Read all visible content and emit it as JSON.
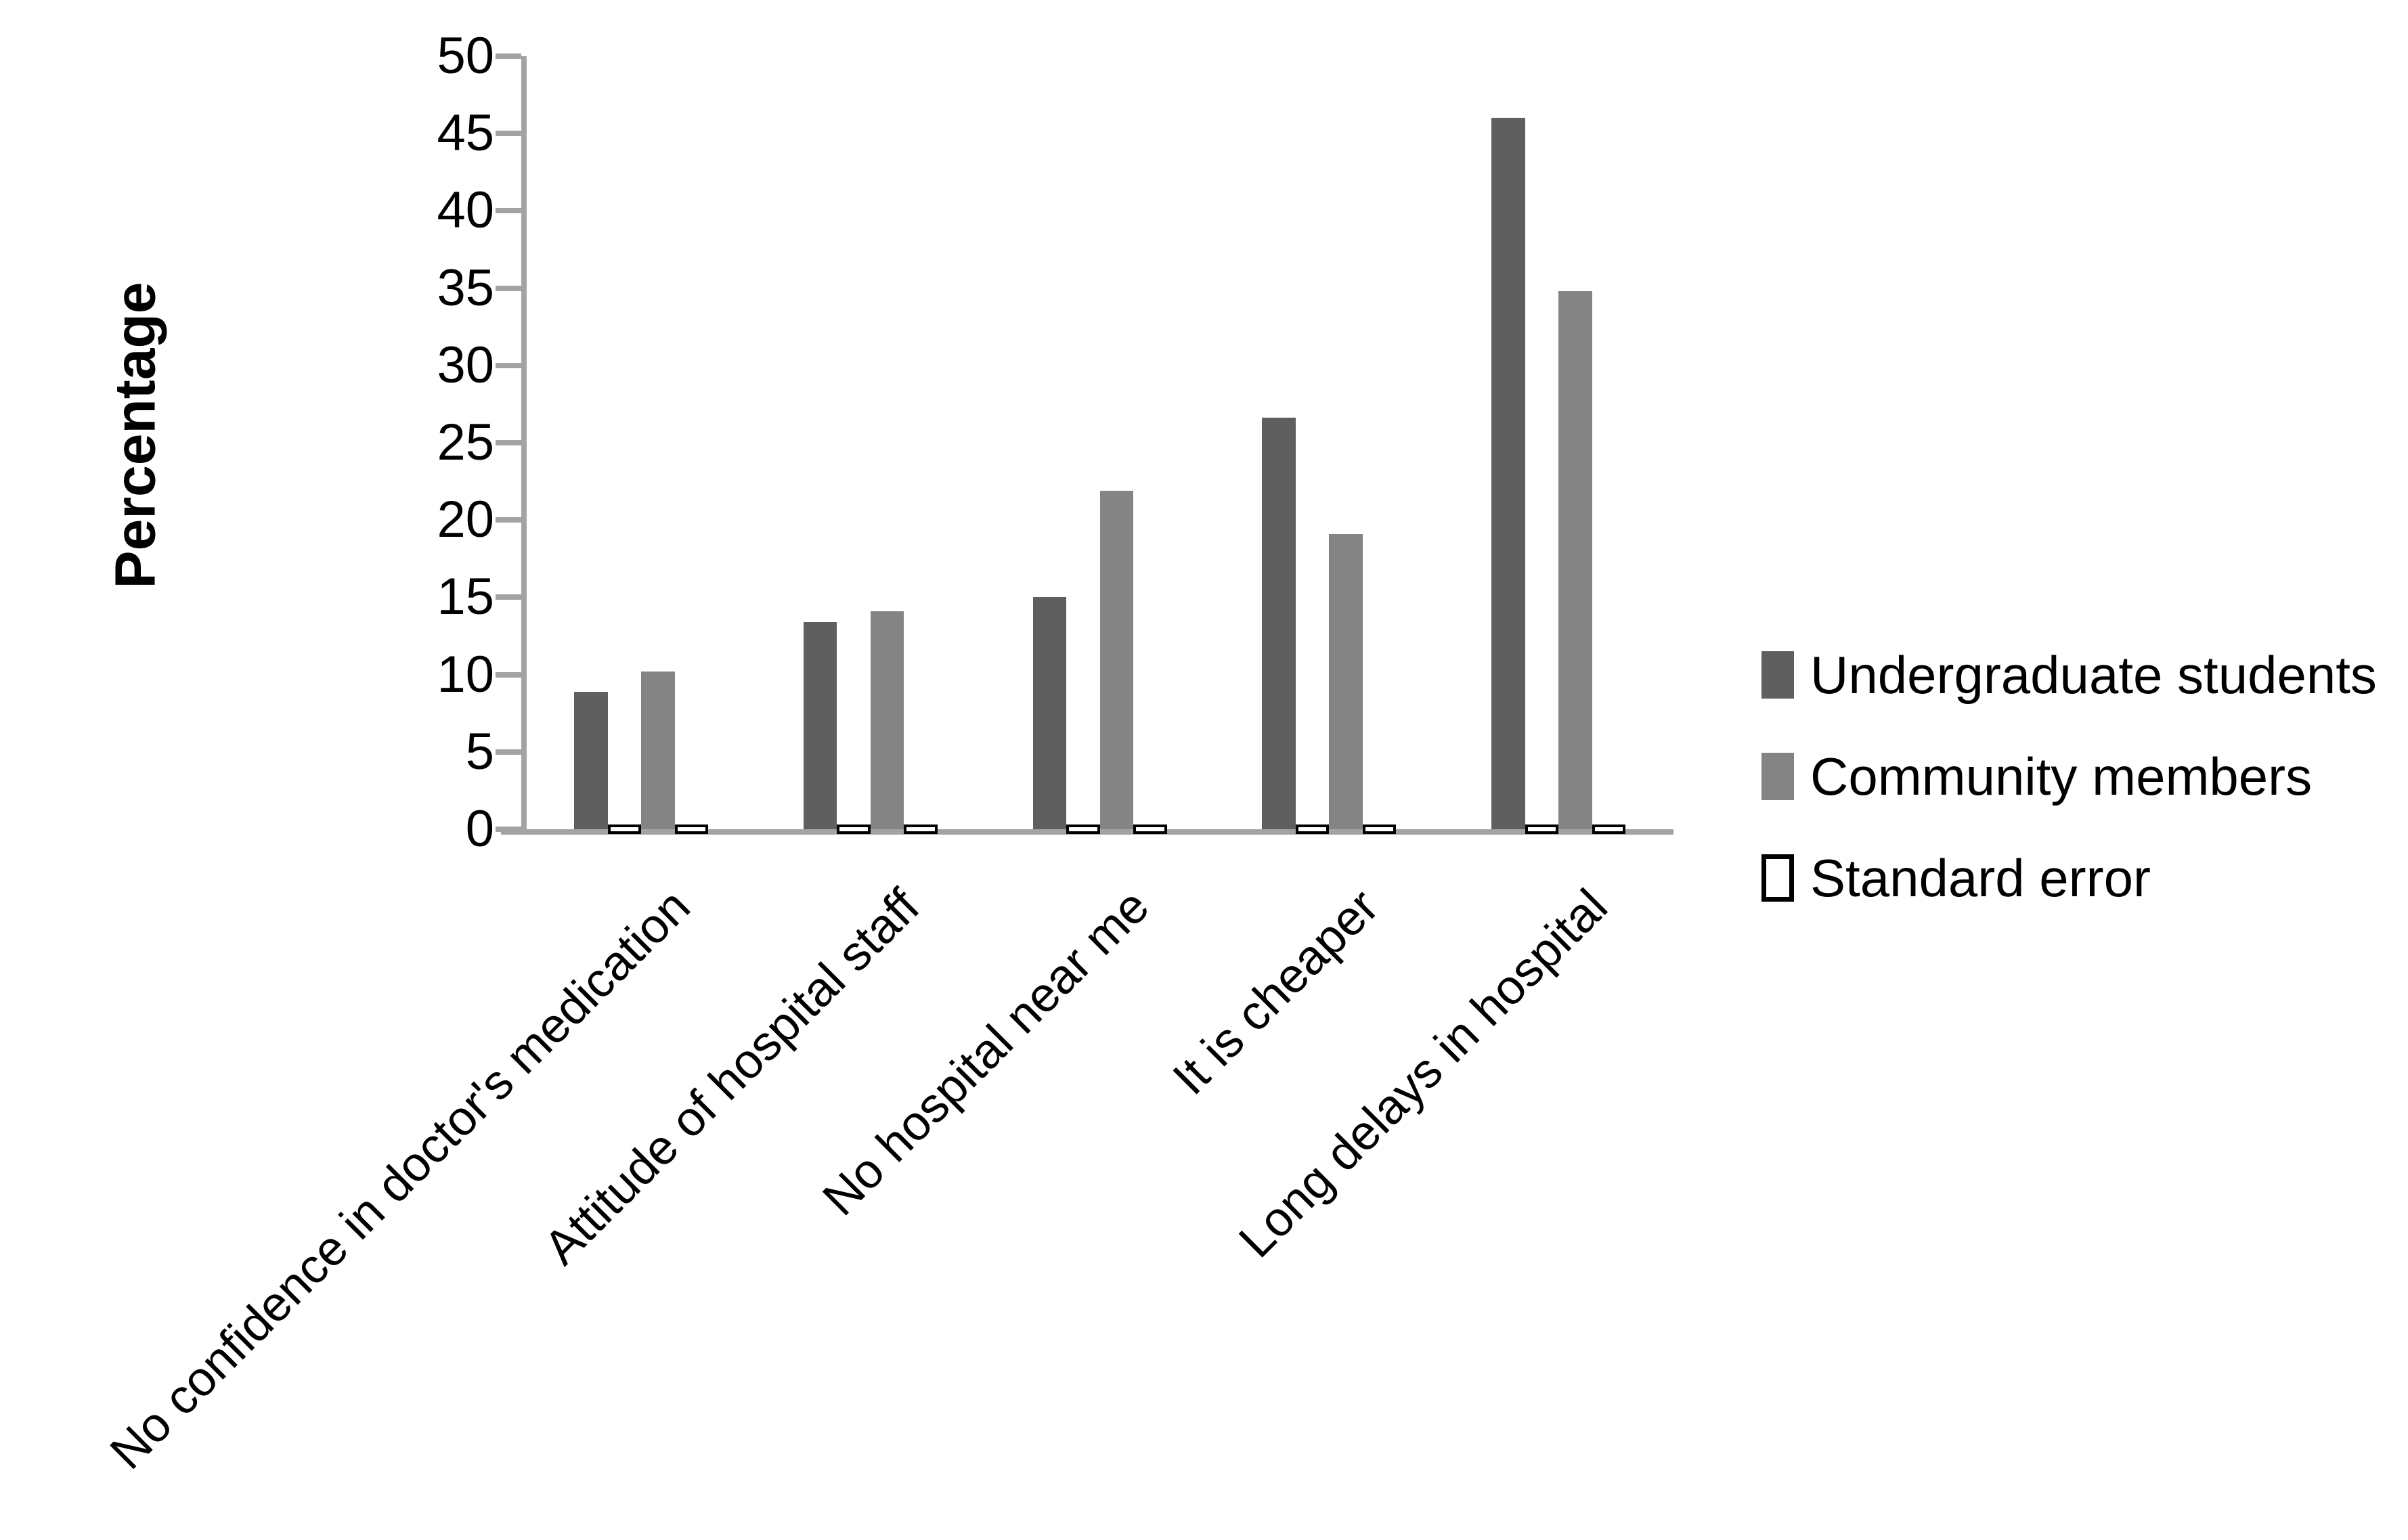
{
  "chart_data": {
    "type": "bar",
    "title": "",
    "ylabel": "Percentage",
    "ylim": [
      0,
      50
    ],
    "ytick_step": 5,
    "yticks": [
      0,
      5,
      10,
      15,
      20,
      25,
      30,
      35,
      40,
      45,
      50
    ],
    "categories": [
      "No confidence in doctor's medication",
      "Attitude of hospital staff",
      "No hospital near me",
      "It is cheaper",
      "Long delays in hospital"
    ],
    "series": [
      {
        "name": "Undergraduate students",
        "color": "#5f5f5f",
        "values": [
          8.9,
          13.4,
          15,
          26.6,
          46
        ]
      },
      {
        "name": "Community members",
        "color": "#848484",
        "values": [
          10.2,
          14.1,
          21.9,
          19.1,
          34.8
        ]
      },
      {
        "name": "Standard error",
        "color": "#ffffff",
        "border_color": "#000000",
        "values": [
          0.3,
          0.3,
          0.3,
          0.3,
          0.3
        ],
        "note": "drawn as a thin white black-outlined bar at the baseline beside each series bar"
      }
    ],
    "legend_position": "right",
    "grid": false,
    "axis_color": "#a3a3a3",
    "text_color": "#000000",
    "background": "#ffffff"
  }
}
